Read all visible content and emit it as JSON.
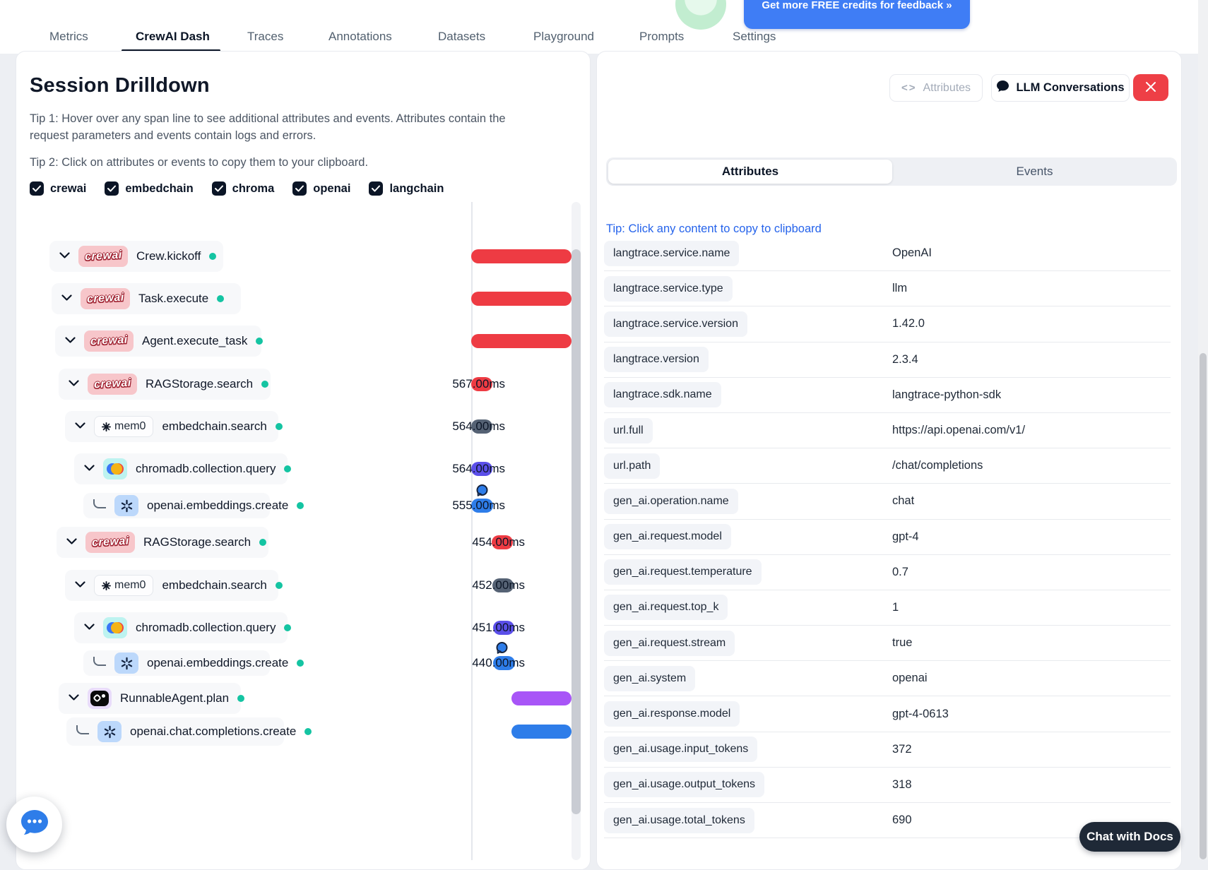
{
  "nav": {
    "tabs": [
      {
        "label": "Metrics",
        "active": false
      },
      {
        "label": "CrewAI Dash",
        "active": true
      },
      {
        "label": "Traces",
        "active": false
      },
      {
        "label": "Annotations",
        "active": false
      },
      {
        "label": "Datasets",
        "active": false
      },
      {
        "label": "Playground",
        "active": false
      },
      {
        "label": "Prompts",
        "active": false
      },
      {
        "label": "Settings",
        "active": false
      }
    ],
    "credits_button_label": "Get more FREE credits for feedback  »"
  },
  "left_panel": {
    "title": "Session Drilldown",
    "tip1": "Tip 1: Hover over any span line to see additional attributes and events. Attributes contain the request parameters and events contain logs and errors.",
    "tip2": "Tip 2: Click on attributes or events to copy them to your clipboard.",
    "filters": [
      {
        "label": "crewai",
        "checked": true
      },
      {
        "label": "embedchain",
        "checked": true
      },
      {
        "label": "chroma",
        "checked": true
      },
      {
        "label": "openai",
        "checked": true
      },
      {
        "label": "langchain",
        "checked": true
      }
    ],
    "spans": [
      {
        "label": "Crew.kickoff",
        "vendor": "crewai",
        "status": "ok",
        "bar_color": "#ee3b43",
        "duration": ""
      },
      {
        "label": "Task.execute",
        "vendor": "crewai",
        "status": "ok",
        "bar_color": "#ee3b43",
        "duration": ""
      },
      {
        "label": "Agent.execute_task",
        "vendor": "crewai",
        "status": "ok",
        "bar_color": "#ee3b43",
        "duration": ""
      },
      {
        "label": "RAGStorage.search",
        "vendor": "crewai",
        "status": "ok",
        "bar_color": "#ee3b43",
        "duration": "567.00ms"
      },
      {
        "label": "embedchain.search",
        "vendor": "mem0",
        "status": "ok",
        "bar_color": "#556274",
        "duration": "564.00ms"
      },
      {
        "label": "chromadb.collection.query",
        "vendor": "chroma",
        "status": "ok",
        "bar_color": "#5b4fe9",
        "duration": "564.00ms"
      },
      {
        "label": "openai.embeddings.create",
        "vendor": "openai",
        "status": "ok",
        "bar_color": "#2e7de9",
        "duration": "555.00ms",
        "bubble": true,
        "elbow": true
      },
      {
        "label": "RAGStorage.search",
        "vendor": "crewai",
        "status": "ok",
        "bar_color": "#ee3b43",
        "duration": "454.00ms"
      },
      {
        "label": "embedchain.search",
        "vendor": "mem0",
        "status": "ok",
        "bar_color": "#556274",
        "duration": "452.00ms"
      },
      {
        "label": "chromadb.collection.query",
        "vendor": "chroma",
        "status": "ok",
        "bar_color": "#5b4fe9",
        "duration": "451.00ms"
      },
      {
        "label": "openai.embeddings.create",
        "vendor": "openai",
        "status": "ok",
        "bar_color": "#2e7de9",
        "duration": "440.00ms",
        "bubble": true,
        "elbow": true
      },
      {
        "label": "RunnableAgent.plan",
        "vendor": "langchain",
        "status": "ok",
        "bar_color": "#a855f7",
        "duration": ""
      },
      {
        "label": "openai.chat.completions.create",
        "vendor": "openai",
        "status": "ok",
        "bar_color": "#2e7de9",
        "duration": "",
        "elbow": true
      }
    ],
    "vendor_badges": {
      "crewai": "crewai",
      "mem0": "mem0"
    }
  },
  "right_panel": {
    "attributes_button_label": "Attributes",
    "code_icon_glyph": "<>",
    "llm_conversations_label": "LLM Conversations",
    "tabs": {
      "attributes": "Attributes",
      "events": "Events"
    },
    "copy_tip": "Tip: Click any content to copy to clipboard",
    "attributes": [
      {
        "key": "langtrace.service.name",
        "value": "OpenAI"
      },
      {
        "key": "langtrace.service.type",
        "value": "llm"
      },
      {
        "key": "langtrace.service.version",
        "value": "1.42.0"
      },
      {
        "key": "langtrace.version",
        "value": "2.3.4"
      },
      {
        "key": "langtrace.sdk.name",
        "value": "langtrace-python-sdk"
      },
      {
        "key": "url.full",
        "value": "https://api.openai.com/v1/"
      },
      {
        "key": "url.path",
        "value": "/chat/completions"
      },
      {
        "key": "gen_ai.operation.name",
        "value": "chat"
      },
      {
        "key": "gen_ai.request.model",
        "value": "gpt-4"
      },
      {
        "key": "gen_ai.request.temperature",
        "value": "0.7"
      },
      {
        "key": "gen_ai.request.top_k",
        "value": "1"
      },
      {
        "key": "gen_ai.request.stream",
        "value": "true"
      },
      {
        "key": "gen_ai.system",
        "value": "openai"
      },
      {
        "key": "gen_ai.response.model",
        "value": "gpt-4-0613"
      },
      {
        "key": "gen_ai.usage.input_tokens",
        "value": "372"
      },
      {
        "key": "gen_ai.usage.output_tokens",
        "value": "318"
      },
      {
        "key": "gen_ai.usage.total_tokens",
        "value": "690"
      }
    ]
  },
  "floating": {
    "chat_docs_label": "Chat with Docs"
  },
  "colors": {
    "accent_red": "#ee3b43",
    "accent_blue": "#2e7de9",
    "accent_indigo": "#5b4fe9",
    "accent_slate": "#556274",
    "accent_purple": "#a855f7",
    "status_teal": "#14c4a2",
    "link_blue": "#2563eb",
    "credits_blue": "#3f7df5"
  }
}
